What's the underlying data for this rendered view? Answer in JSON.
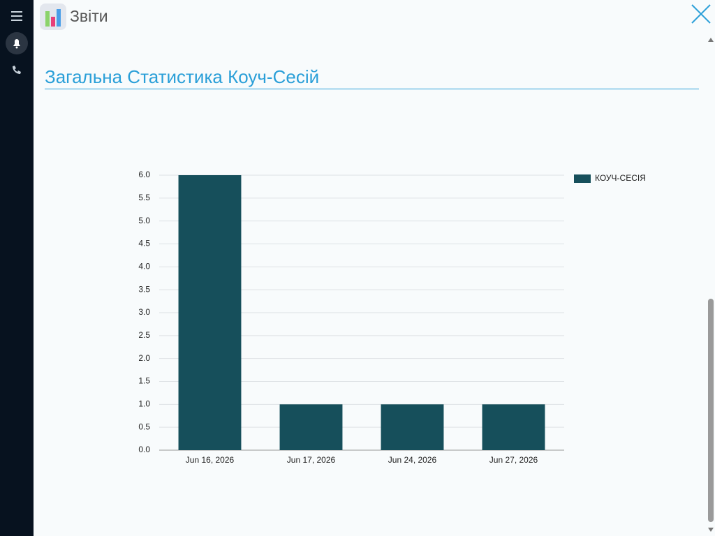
{
  "header": {
    "title": "Звіти"
  },
  "section": {
    "title": "Загальна Статистика Коуч-Сесій"
  },
  "chart_data": {
    "type": "bar",
    "categories": [
      "Jun 16, 2026",
      "Jun 17, 2026",
      "Jun 24, 2026",
      "Jun 27, 2026"
    ],
    "series": [
      {
        "name": "КОУЧ-СЕСІЯ",
        "color": "#164f5b",
        "values": [
          6,
          1,
          1,
          1
        ]
      }
    ],
    "ylim": [
      0,
      6
    ],
    "yticks": [
      {
        "value": 0,
        "label": "0.0"
      },
      {
        "value": 0.5,
        "label": "0.5"
      },
      {
        "value": 1,
        "label": "1.0"
      },
      {
        "value": 1.5,
        "label": "1.5"
      },
      {
        "value": 2,
        "label": "2.0"
      },
      {
        "value": 2.5,
        "label": "2.5"
      },
      {
        "value": 3,
        "label": "3.0"
      },
      {
        "value": 3.5,
        "label": "3.5"
      },
      {
        "value": 4,
        "label": "4.0"
      },
      {
        "value": 4.5,
        "label": "4.5"
      },
      {
        "value": 5,
        "label": "5.0"
      },
      {
        "value": 5.5,
        "label": "5.5"
      },
      {
        "value": 6,
        "label": "6.0"
      }
    ],
    "grid": true,
    "legend": "right"
  }
}
